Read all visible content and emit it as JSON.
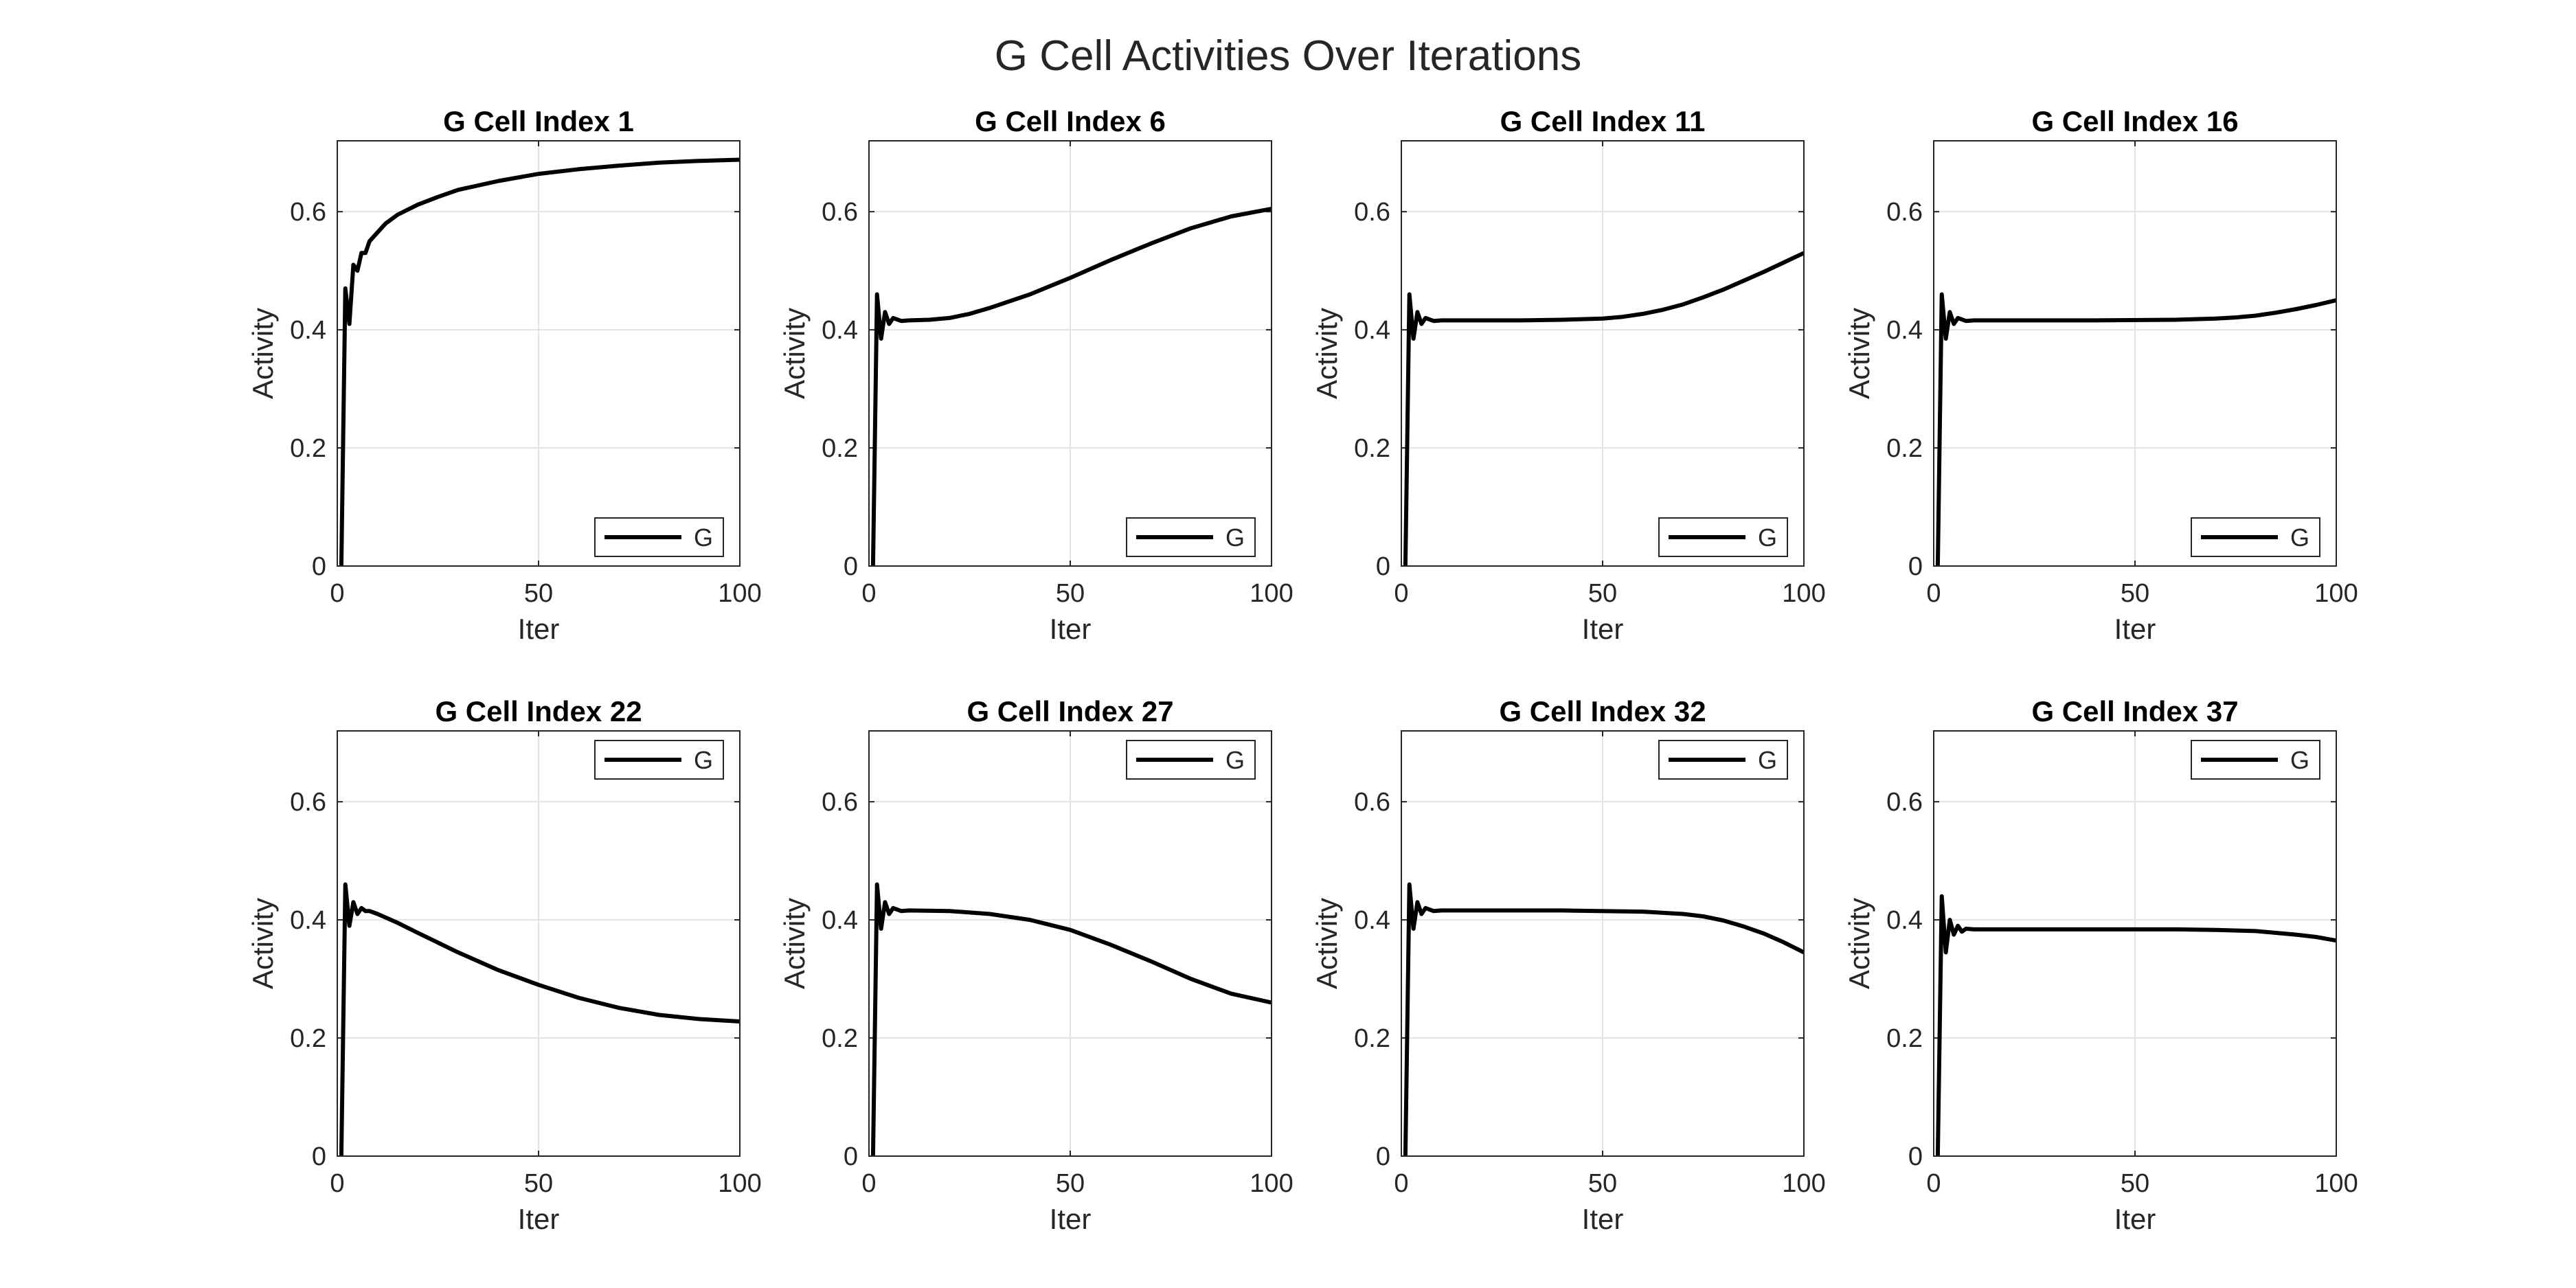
{
  "figure": {
    "title": "G Cell Activities Over Iterations"
  },
  "chart_data": [
    {
      "type": "line",
      "title": "G Cell Index 1",
      "xlabel": "Iter",
      "ylabel": "Activity",
      "xlim": [
        0,
        100
      ],
      "ylim": [
        0,
        0.72
      ],
      "xticks": [
        0,
        50,
        100
      ],
      "yticks": [
        0,
        0.2,
        0.4,
        0.6
      ],
      "grid": true,
      "legend": {
        "entries": [
          "G"
        ],
        "location": "bottom-right"
      },
      "series": [
        {
          "name": "G",
          "x": [
            1,
            2,
            3,
            4,
            5,
            6,
            7,
            8,
            10,
            12,
            15,
            20,
            25,
            30,
            40,
            50,
            60,
            70,
            80,
            90,
            100
          ],
          "y": [
            0,
            0.47,
            0.41,
            0.51,
            0.5,
            0.53,
            0.53,
            0.55,
            0.565,
            0.58,
            0.595,
            0.612,
            0.625,
            0.637,
            0.652,
            0.664,
            0.672,
            0.678,
            0.683,
            0.686,
            0.688
          ]
        }
      ]
    },
    {
      "type": "line",
      "title": "G Cell Index 6",
      "xlabel": "Iter",
      "ylabel": "Activity",
      "xlim": [
        0,
        100
      ],
      "ylim": [
        0,
        0.72
      ],
      "xticks": [
        0,
        50,
        100
      ],
      "yticks": [
        0,
        0.2,
        0.4,
        0.6
      ],
      "grid": true,
      "legend": {
        "entries": [
          "G"
        ],
        "location": "bottom-right"
      },
      "series": [
        {
          "name": "G",
          "x": [
            1,
            2,
            3,
            4,
            5,
            6,
            8,
            10,
            15,
            20,
            25,
            30,
            40,
            50,
            60,
            70,
            80,
            90,
            100
          ],
          "y": [
            0,
            0.46,
            0.385,
            0.43,
            0.41,
            0.42,
            0.415,
            0.416,
            0.417,
            0.42,
            0.427,
            0.437,
            0.46,
            0.488,
            0.518,
            0.546,
            0.572,
            0.592,
            0.605
          ]
        }
      ]
    },
    {
      "type": "line",
      "title": "G Cell Index 11",
      "xlabel": "Iter",
      "ylabel": "Activity",
      "xlim": [
        0,
        100
      ],
      "ylim": [
        0,
        0.72
      ],
      "xticks": [
        0,
        50,
        100
      ],
      "yticks": [
        0,
        0.2,
        0.4,
        0.6
      ],
      "grid": true,
      "legend": {
        "entries": [
          "G"
        ],
        "location": "bottom-right"
      },
      "series": [
        {
          "name": "G",
          "x": [
            1,
            2,
            3,
            4,
            5,
            6,
            8,
            10,
            20,
            30,
            40,
            50,
            55,
            60,
            65,
            70,
            75,
            80,
            85,
            90,
            95,
            100
          ],
          "y": [
            0,
            0.46,
            0.385,
            0.43,
            0.41,
            0.42,
            0.415,
            0.416,
            0.416,
            0.416,
            0.417,
            0.419,
            0.422,
            0.427,
            0.434,
            0.443,
            0.455,
            0.468,
            0.483,
            0.498,
            0.514,
            0.53
          ]
        }
      ]
    },
    {
      "type": "line",
      "title": "G Cell Index 16",
      "xlabel": "Iter",
      "ylabel": "Activity",
      "xlim": [
        0,
        100
      ],
      "ylim": [
        0,
        0.72
      ],
      "xticks": [
        0,
        50,
        100
      ],
      "yticks": [
        0,
        0.2,
        0.4,
        0.6
      ],
      "grid": true,
      "legend": {
        "entries": [
          "G"
        ],
        "location": "bottom-right"
      },
      "series": [
        {
          "name": "G",
          "x": [
            1,
            2,
            3,
            4,
            5,
            6,
            8,
            10,
            20,
            40,
            60,
            70,
            75,
            80,
            85,
            90,
            95,
            100
          ],
          "y": [
            0,
            0.46,
            0.385,
            0.43,
            0.41,
            0.42,
            0.415,
            0.416,
            0.416,
            0.416,
            0.417,
            0.419,
            0.421,
            0.424,
            0.429,
            0.435,
            0.442,
            0.45
          ]
        }
      ]
    },
    {
      "type": "line",
      "title": "G Cell Index 22",
      "xlabel": "Iter",
      "ylabel": "Activity",
      "xlim": [
        0,
        100
      ],
      "ylim": [
        0,
        0.72
      ],
      "xticks": [
        0,
        50,
        100
      ],
      "yticks": [
        0,
        0.2,
        0.4,
        0.6
      ],
      "grid": true,
      "legend": {
        "entries": [
          "G"
        ],
        "location": "top-right"
      },
      "series": [
        {
          "name": "G",
          "x": [
            1,
            2,
            3,
            4,
            5,
            6,
            7,
            8,
            10,
            15,
            20,
            30,
            40,
            50,
            60,
            70,
            80,
            90,
            100
          ],
          "y": [
            0,
            0.46,
            0.39,
            0.43,
            0.41,
            0.42,
            0.415,
            0.415,
            0.41,
            0.395,
            0.378,
            0.345,
            0.315,
            0.29,
            0.268,
            0.251,
            0.239,
            0.232,
            0.228
          ]
        }
      ]
    },
    {
      "type": "line",
      "title": "G Cell Index 27",
      "xlabel": "Iter",
      "ylabel": "Activity",
      "xlim": [
        0,
        100
      ],
      "ylim": [
        0,
        0.72
      ],
      "xticks": [
        0,
        50,
        100
      ],
      "yticks": [
        0,
        0.2,
        0.4,
        0.6
      ],
      "grid": true,
      "legend": {
        "entries": [
          "G"
        ],
        "location": "top-right"
      },
      "series": [
        {
          "name": "G",
          "x": [
            1,
            2,
            3,
            4,
            5,
            6,
            8,
            10,
            20,
            30,
            40,
            50,
            60,
            70,
            80,
            90,
            100
          ],
          "y": [
            0,
            0.46,
            0.385,
            0.43,
            0.41,
            0.42,
            0.415,
            0.416,
            0.415,
            0.41,
            0.4,
            0.383,
            0.358,
            0.33,
            0.3,
            0.275,
            0.26
          ]
        }
      ]
    },
    {
      "type": "line",
      "title": "G Cell Index 32",
      "xlabel": "Iter",
      "ylabel": "Activity",
      "xlim": [
        0,
        100
      ],
      "ylim": [
        0,
        0.72
      ],
      "xticks": [
        0,
        50,
        100
      ],
      "yticks": [
        0,
        0.2,
        0.4,
        0.6
      ],
      "grid": true,
      "legend": {
        "entries": [
          "G"
        ],
        "location": "top-right"
      },
      "series": [
        {
          "name": "G",
          "x": [
            1,
            2,
            3,
            4,
            5,
            6,
            8,
            10,
            20,
            40,
            60,
            70,
            75,
            80,
            85,
            90,
            95,
            100
          ],
          "y": [
            0,
            0.46,
            0.385,
            0.43,
            0.41,
            0.42,
            0.415,
            0.416,
            0.416,
            0.416,
            0.414,
            0.41,
            0.406,
            0.399,
            0.389,
            0.377,
            0.362,
            0.345
          ]
        }
      ]
    },
    {
      "type": "line",
      "title": "G Cell Index 37",
      "xlabel": "Iter",
      "ylabel": "Activity",
      "xlim": [
        0,
        100
      ],
      "ylim": [
        0,
        0.72
      ],
      "xticks": [
        0,
        50,
        100
      ],
      "yticks": [
        0,
        0.2,
        0.4,
        0.6
      ],
      "grid": true,
      "legend": {
        "entries": [
          "G"
        ],
        "location": "top-right"
      },
      "series": [
        {
          "name": "G",
          "x": [
            1,
            2,
            3,
            4,
            5,
            6,
            7,
            8,
            10,
            20,
            40,
            60,
            70,
            80,
            85,
            90,
            95,
            100
          ],
          "y": [
            0,
            0.44,
            0.345,
            0.4,
            0.375,
            0.39,
            0.38,
            0.385,
            0.384,
            0.384,
            0.384,
            0.384,
            0.383,
            0.381,
            0.378,
            0.375,
            0.371,
            0.365
          ]
        }
      ]
    }
  ]
}
